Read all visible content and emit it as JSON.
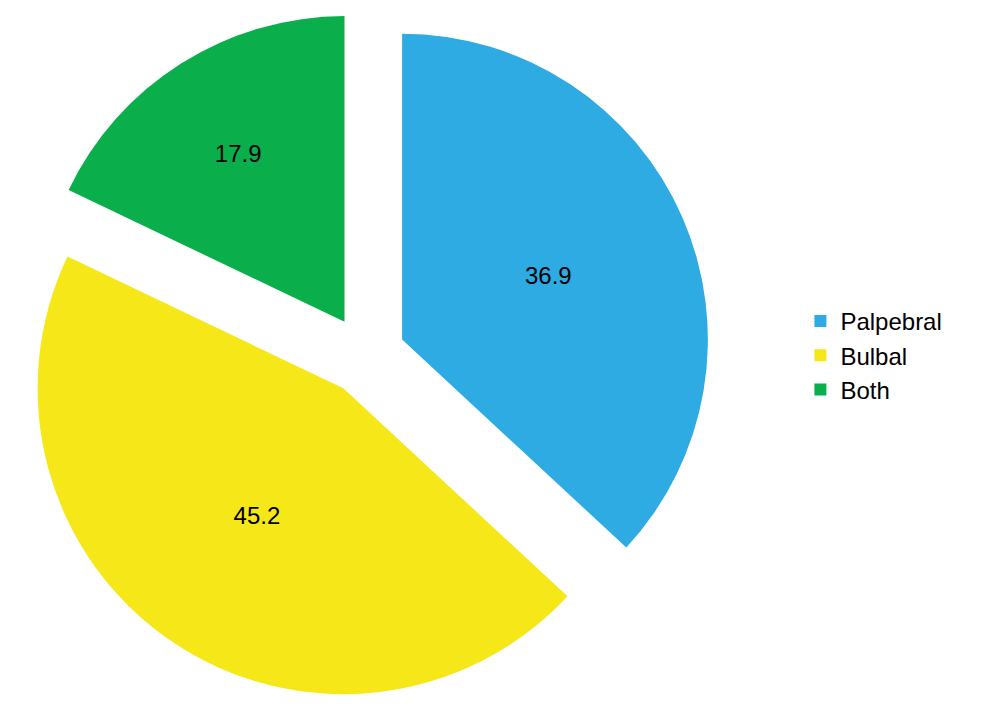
{
  "chart_data": {
    "type": "pie",
    "categories": [
      "Palpebral",
      "Bulbal",
      "Both"
    ],
    "values": [
      36.9,
      45.2,
      17.9
    ],
    "colors": [
      "#2dabe2",
      "#f5e718",
      "#0aaf4c"
    ],
    "data_labels": true,
    "legend": "right"
  }
}
